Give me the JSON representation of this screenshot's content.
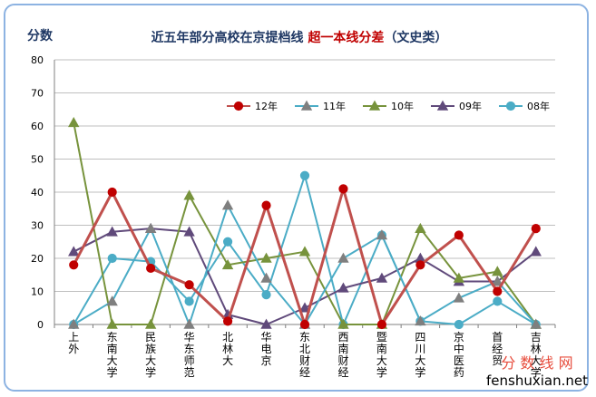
{
  "chart_data": {
    "type": "line",
    "title_part1": "近五年部分高校在京提档线 ",
    "title_part2": "超一本线分差",
    "title_part3": "（文史类）",
    "ylabel": "分数",
    "ylim": [
      0,
      80
    ],
    "yticks": [
      0,
      10,
      20,
      30,
      40,
      50,
      60,
      70,
      80
    ],
    "categories": [
      "上外",
      "东南大学",
      "民族大学",
      "华东师范",
      "北林大",
      "华电京",
      "东北财经",
      "西南财经",
      "暨南大学",
      "四川大学",
      "京中医药",
      "首经贸",
      "吉林大学"
    ],
    "series": [
      {
        "name": "12年",
        "color": "#c0504d",
        "marker": "circle",
        "values": [
          18,
          40,
          17,
          12,
          1,
          36,
          0,
          41,
          0,
          18,
          27,
          10,
          29
        ]
      },
      {
        "name": "11年",
        "color": "#4bacc6",
        "marker": "triangle",
        "values": [
          0,
          7,
          29,
          0,
          36,
          14,
          0,
          20,
          27,
          1,
          8,
          13,
          0
        ]
      },
      {
        "name": "10年",
        "color": "#77933c",
        "marker": "triangle",
        "values": [
          61,
          0,
          0,
          39,
          18,
          20,
          22,
          0,
          0,
          29,
          14,
          16,
          0
        ]
      },
      {
        "name": "09年",
        "color": "#604a7b",
        "marker": "triangle",
        "values": [
          22,
          28,
          29,
          28,
          3,
          0,
          5,
          11,
          14,
          20,
          13,
          13,
          22
        ]
      },
      {
        "name": "08年",
        "color": "#4bacc6",
        "marker": "circle",
        "values": [
          0,
          20,
          19,
          7,
          25,
          9,
          45,
          0,
          27,
          1,
          0,
          7,
          0
        ]
      }
    ],
    "series_line_colors": [
      "#c0504d",
      "#4bacc6",
      "#77933c",
      "#604a7b",
      "#4bacc6"
    ],
    "series_marker_fill": [
      "#c00000",
      "#7f7f7f",
      "#77933c",
      "#604a7b",
      "#4bacc6"
    ],
    "watermark": {
      "line1": "分 数 线 网",
      "line2": "fenshuxian.net"
    }
  }
}
